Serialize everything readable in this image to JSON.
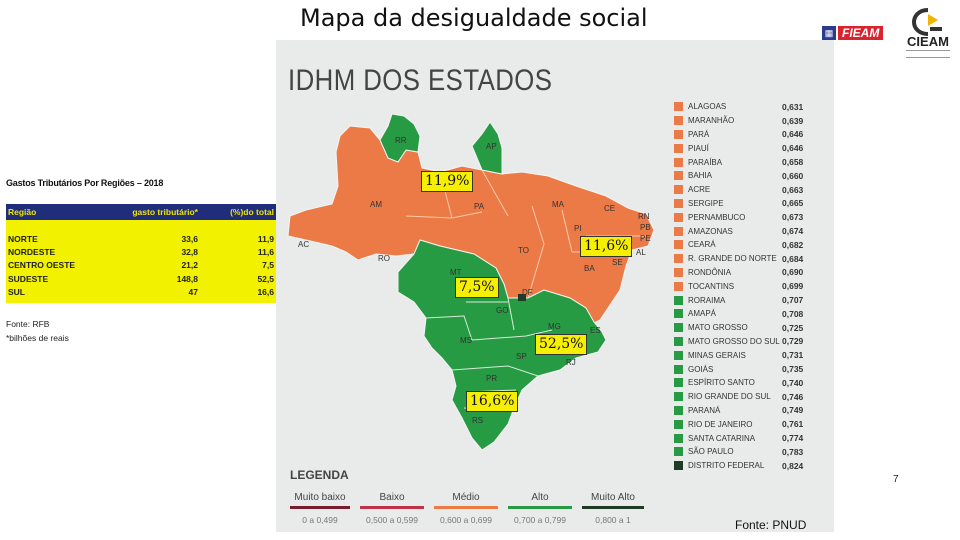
{
  "slide": {
    "title": "Mapa da desigualdade social",
    "page_number": "7",
    "source": "Fonte: PNUD",
    "logo_fieam": "FIEAM",
    "logo_cieam": "CIEAM"
  },
  "tax_table": {
    "title": "Gastos Tributários Por Regiões – 2018",
    "headers": [
      "Região",
      "gasto tributário*",
      "(%)do total"
    ],
    "rows": [
      {
        "region": "NORTE",
        "spend": "33,6",
        "pct": "11,9"
      },
      {
        "region": "NORDESTE",
        "spend": "32,8",
        "pct": "11,6"
      },
      {
        "region": "CENTRO OESTE",
        "spend": "21,2",
        "pct": "7,5"
      },
      {
        "region": "SUDESTE",
        "spend": "148,8",
        "pct": "52,5"
      },
      {
        "region": "SUL",
        "spend": "47",
        "pct": "16,6"
      }
    ],
    "source": "Fonte: RFB",
    "note": "*bilhões de reais"
  },
  "map": {
    "heading": "IDHM DOS ESTADOS",
    "colors": {
      "medio": "#ec7a46",
      "alto": "#279a44",
      "muito_alto": "#1f3b25",
      "baixo": "#c0314a",
      "muito_baixo": "#7a1c2c"
    },
    "state_labels": [
      "RR",
      "AP",
      "AM",
      "PA",
      "MA",
      "CE",
      "RN",
      "PB",
      "PE",
      "AL",
      "SE",
      "PI",
      "TO",
      "BA",
      "AC",
      "RO",
      "MT",
      "DF",
      "GO",
      "MG",
      "ES",
      "MS",
      "SP",
      "RJ",
      "PR",
      "SC",
      "RS"
    ],
    "ranking": [
      {
        "state": "ALAGOAS",
        "value": "0,631",
        "level": "medio"
      },
      {
        "state": "MARANHÃO",
        "value": "0,639",
        "level": "medio"
      },
      {
        "state": "PARÁ",
        "value": "0,646",
        "level": "medio"
      },
      {
        "state": "PIAUÍ",
        "value": "0,646",
        "level": "medio"
      },
      {
        "state": "PARAÍBA",
        "value": "0,658",
        "level": "medio"
      },
      {
        "state": "BAHIA",
        "value": "0,660",
        "level": "medio"
      },
      {
        "state": "ACRE",
        "value": "0,663",
        "level": "medio"
      },
      {
        "state": "SERGIPE",
        "value": "0,665",
        "level": "medio"
      },
      {
        "state": "PERNAMBUCO",
        "value": "0,673",
        "level": "medio"
      },
      {
        "state": "AMAZONAS",
        "value": "0,674",
        "level": "medio"
      },
      {
        "state": "CEARÁ",
        "value": "0,682",
        "level": "medio"
      },
      {
        "state": "R. GRANDE DO NORTE",
        "value": "0,684",
        "level": "medio"
      },
      {
        "state": "RONDÔNIA",
        "value": "0,690",
        "level": "medio"
      },
      {
        "state": "TOCANTINS",
        "value": "0,699",
        "level": "medio"
      },
      {
        "state": "RORAIMA",
        "value": "0,707",
        "level": "alto"
      },
      {
        "state": "AMAPÁ",
        "value": "0,708",
        "level": "alto"
      },
      {
        "state": "MATO GROSSO",
        "value": "0,725",
        "level": "alto"
      },
      {
        "state": "MATO GROSSO DO SUL",
        "value": "0,729",
        "level": "alto"
      },
      {
        "state": "MINAS GERAIS",
        "value": "0,731",
        "level": "alto"
      },
      {
        "state": "GOIÁS",
        "value": "0,735",
        "level": "alto"
      },
      {
        "state": "ESPÍRITO SANTO",
        "value": "0,740",
        "level": "alto"
      },
      {
        "state": "RIO GRANDE DO SUL",
        "value": "0,746",
        "level": "alto"
      },
      {
        "state": "PARANÁ",
        "value": "0,749",
        "level": "alto"
      },
      {
        "state": "RIO DE JANEIRO",
        "value": "0,761",
        "level": "alto"
      },
      {
        "state": "SANTA CATARINA",
        "value": "0,774",
        "level": "alto"
      },
      {
        "state": "SÃO PAULO",
        "value": "0,783",
        "level": "alto"
      },
      {
        "state": "DISTRITO FEDERAL",
        "value": "0,824",
        "level": "muito_alto"
      }
    ],
    "legend_title": "LEGENDA",
    "scale": [
      {
        "label": "Muito baixo",
        "range": "0 a 0,499",
        "color": "#7a1c2c"
      },
      {
        "label": "Baixo",
        "range": "0,500 a 0,599",
        "color": "#c0314a"
      },
      {
        "label": "Médio",
        "range": "0,600 a 0,699",
        "color": "#ec7a46"
      },
      {
        "label": "Alto",
        "range": "0,700 a 0,799",
        "color": "#279a44"
      },
      {
        "label": "Muito Alto",
        "range": "0,800 a 1",
        "color": "#1f3b25"
      }
    ]
  },
  "callouts": [
    "11,9%",
    "11,6%",
    "7,5%",
    "52,5%",
    "16,6%"
  ]
}
